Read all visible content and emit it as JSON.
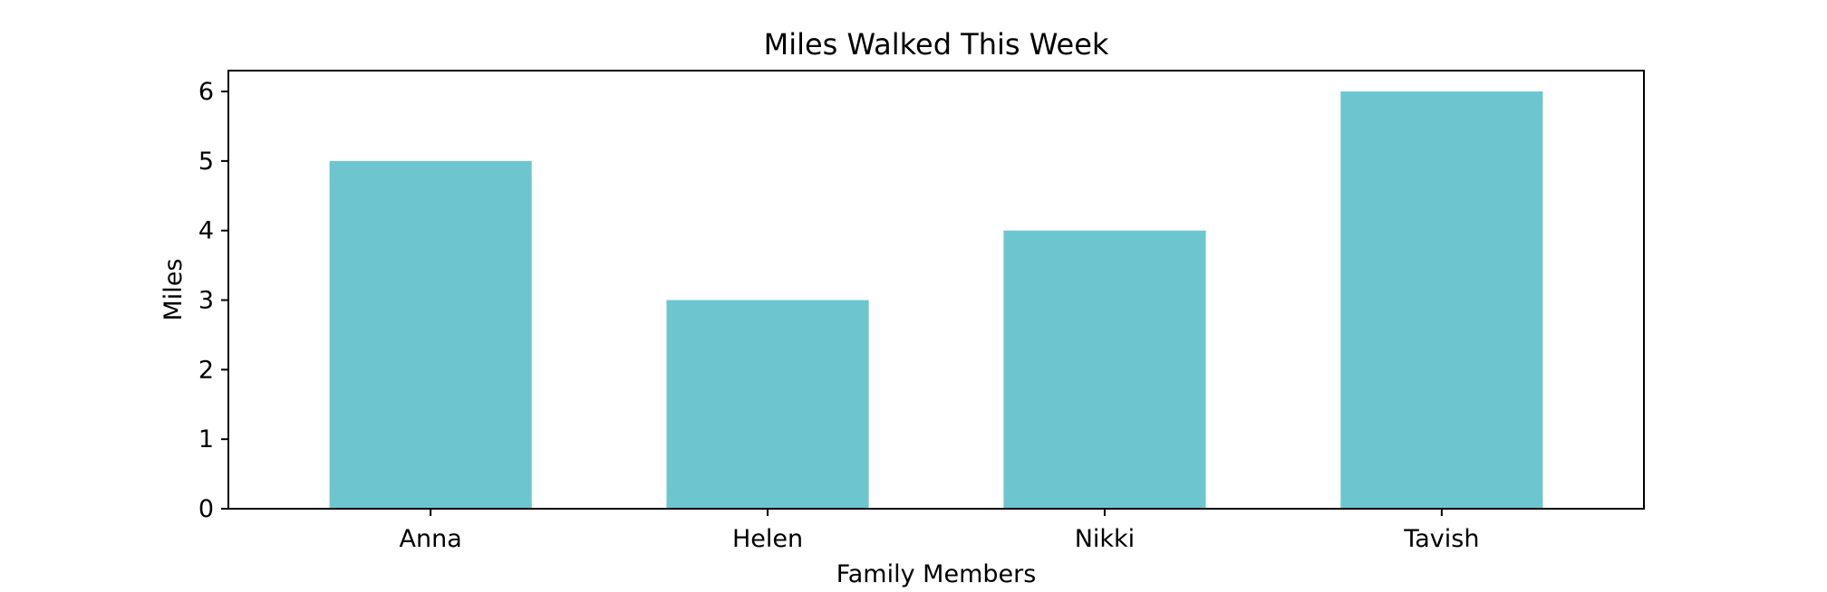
{
  "chart_data": {
    "type": "bar",
    "title": "Miles Walked This Week",
    "xlabel": "Family Members",
    "ylabel": "Miles",
    "categories": [
      "Anna",
      "Helen",
      "Nikki",
      "Tavish"
    ],
    "values": [
      5,
      3,
      4,
      6
    ],
    "ylim": [
      0,
      6.3
    ],
    "yticks": [
      "0",
      "1",
      "2",
      "3",
      "4",
      "5",
      "6"
    ],
    "bar_color": "#6dc6cf",
    "grid": false,
    "legend": false
  }
}
